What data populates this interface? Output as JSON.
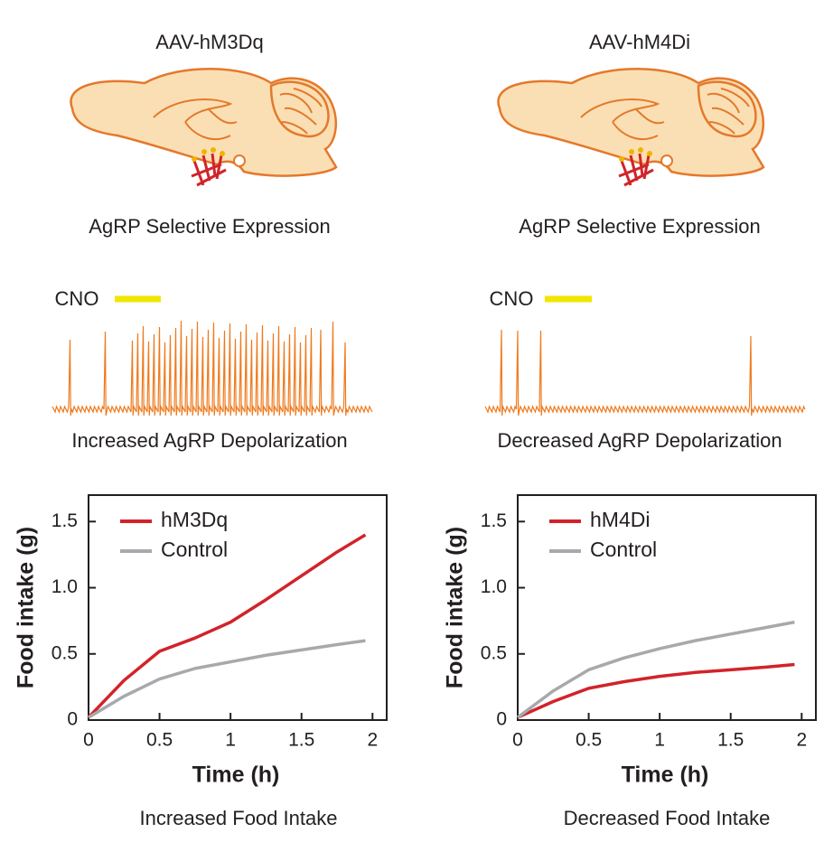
{
  "panels": [
    {
      "vector": "AAV-hM3Dq",
      "expression": "AgRP Selective Expression",
      "cno_label": "CNO",
      "trace_caption": "Increased AgRP Depolarization",
      "caption": "Increased Food Intake"
    },
    {
      "vector": "AAV-hM4Di",
      "expression": "AgRP Selective Expression",
      "cno_label": "CNO",
      "trace_caption": "Decreased AgRP Depolarization",
      "caption": "Decreased Food Intake"
    }
  ],
  "chart_data": [
    {
      "type": "line",
      "x_label": "Time (h)",
      "y_label": "Food intake (g)",
      "x": [
        0,
        0.25,
        0.5,
        0.75,
        1,
        1.25,
        1.5,
        1.75,
        1.95
      ],
      "series": [
        {
          "name": "hM3Dq",
          "color": "#d2232a",
          "values": [
            0.02,
            0.3,
            0.52,
            0.62,
            0.74,
            0.91,
            1.09,
            1.27,
            1.4
          ]
        },
        {
          "name": "Control",
          "color": "#a7a9ac",
          "values": [
            0.02,
            0.18,
            0.31,
            0.39,
            0.44,
            0.49,
            0.53,
            0.57,
            0.6
          ]
        }
      ],
      "xlim": [
        0,
        2.1
      ],
      "ylim": [
        0,
        1.7
      ],
      "xticks": [
        0,
        0.5,
        1,
        1.5,
        2
      ],
      "yticks": [
        0,
        0.5,
        {
          "value": 1,
          "label": "1.0"
        },
        1.5
      ],
      "legend": "upper left"
    },
    {
      "type": "line",
      "x_label": "Time (h)",
      "y_label": "Food intake (g)",
      "x": [
        0,
        0.25,
        0.5,
        0.75,
        1,
        1.25,
        1.5,
        1.75,
        1.95
      ],
      "series": [
        {
          "name": "hM4Di",
          "color": "#d2232a",
          "values": [
            0.02,
            0.14,
            0.24,
            0.29,
            0.33,
            0.36,
            0.38,
            0.4,
            0.42
          ]
        },
        {
          "name": "Control",
          "color": "#a7a9ac",
          "values": [
            0.02,
            0.22,
            0.38,
            0.47,
            0.54,
            0.6,
            0.65,
            0.7,
            0.74
          ]
        }
      ],
      "xlim": [
        0,
        2.1
      ],
      "ylim": [
        0,
        1.7
      ],
      "xticks": [
        0,
        0.5,
        1,
        1.5,
        2
      ],
      "yticks": [
        0,
        0.5,
        {
          "value": 1,
          "label": "1.0"
        },
        1.5
      ],
      "legend": "upper left"
    }
  ]
}
